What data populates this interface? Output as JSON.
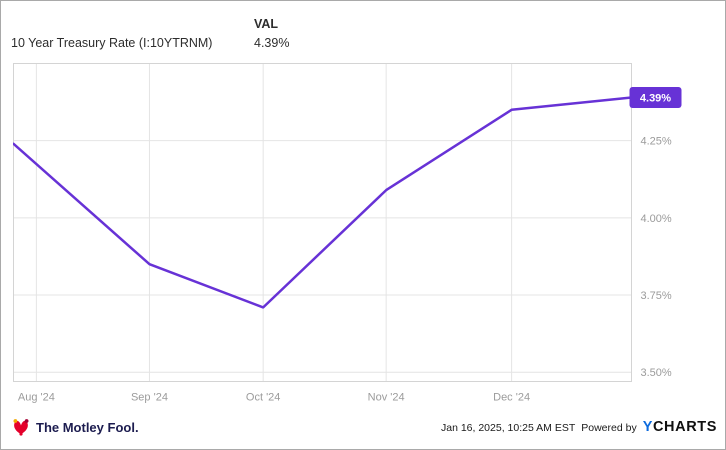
{
  "header": {
    "title": "10 Year Treasury Rate (I:10YTRNM)",
    "val_label": "VAL",
    "val_value": "4.39%"
  },
  "chart_data": {
    "type": "line",
    "title": "10 Year Treasury Rate (I:10YTRNM)",
    "series": [
      {
        "name": "10 Year Treasury Rate",
        "color": "#6732d6",
        "points": [
          {
            "x": 0.0,
            "y": 4.24
          },
          {
            "x": 0.22,
            "y": 3.85
          },
          {
            "x": 0.404,
            "y": 3.71
          },
          {
            "x": 0.603,
            "y": 4.09
          },
          {
            "x": 0.806,
            "y": 4.35
          },
          {
            "x": 1.0,
            "y": 4.39
          }
        ]
      }
    ],
    "x_ticks": [
      {
        "pos": 0.037,
        "label": "Aug '24"
      },
      {
        "pos": 0.22,
        "label": "Sep '24"
      },
      {
        "pos": 0.404,
        "label": "Oct '24"
      },
      {
        "pos": 0.603,
        "label": "Nov '24"
      },
      {
        "pos": 0.806,
        "label": "Dec '24"
      }
    ],
    "y_ticks": [
      {
        "value": 4.25,
        "label": "4.25%"
      },
      {
        "value": 4.0,
        "label": "4.00%"
      },
      {
        "value": 3.75,
        "label": "3.75%"
      },
      {
        "value": 3.5,
        "label": "3.50%"
      }
    ],
    "y_range": [
      3.47,
      4.5
    ],
    "grid": true,
    "legend": "none",
    "last_value_badge": {
      "label": "4.39%",
      "value": 4.39,
      "bg": "#6732d6",
      "fg": "#ffffff"
    },
    "colors": {
      "grid": "#e4e4e4",
      "border": "#d4d4d4",
      "axis_text": "#9b9b9b"
    }
  },
  "footer": {
    "brand": "The Motley Fool.",
    "timestamp": "Jan 16, 2025, 10:25 AM EST",
    "powered_by": "Powered by",
    "ycharts_y": "Y",
    "ycharts_charts": "CHARTS"
  }
}
